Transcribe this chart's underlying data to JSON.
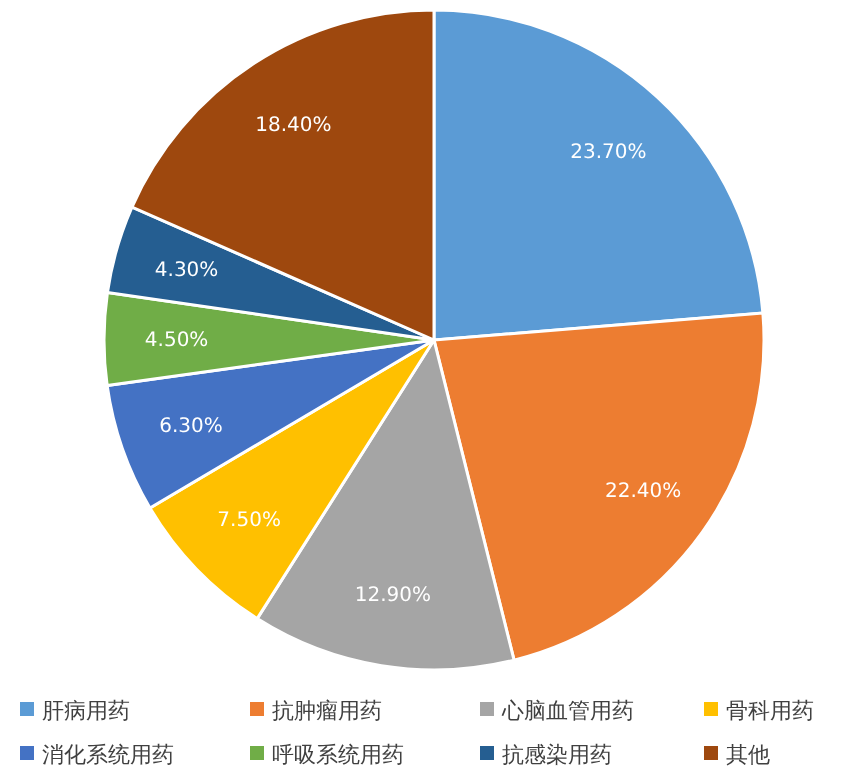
{
  "chart_data": {
    "type": "pie",
    "categories": [
      "肝病用药",
      "抗肿瘤用药",
      "心脑血管用药",
      "骨科用药",
      "消化系统用药",
      "呼吸系统用药",
      "抗感染用药",
      "其他"
    ],
    "values": [
      23.7,
      22.4,
      12.9,
      7.5,
      6.3,
      4.5,
      4.3,
      18.4
    ],
    "value_labels": [
      "23.70%",
      "22.40%",
      "12.90%",
      "7.50%",
      "6.30%",
      "4.50%",
      "4.30%",
      "18.40%"
    ],
    "colors": [
      "#5b9bd5",
      "#ed7d31",
      "#a5a5a5",
      "#ffc000",
      "#4472c4",
      "#70ad47",
      "#255e91",
      "#9e480e"
    ],
    "legend": "bottom"
  }
}
